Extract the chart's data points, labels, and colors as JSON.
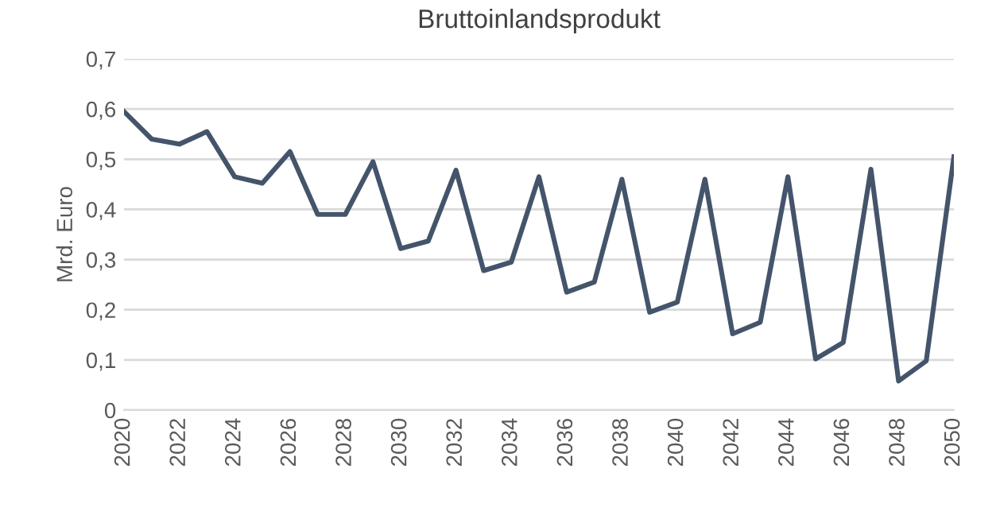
{
  "chart_data": {
    "type": "line",
    "title": "Bruttoinlandsprodukt",
    "ylabel": "Mrd. Euro",
    "x": [
      2020,
      2021,
      2022,
      2023,
      2024,
      2025,
      2026,
      2027,
      2028,
      2029,
      2030,
      2031,
      2032,
      2033,
      2034,
      2035,
      2036,
      2037,
      2038,
      2039,
      2040,
      2041,
      2042,
      2043,
      2044,
      2045,
      2046,
      2047,
      2048,
      2049,
      2050
    ],
    "series": [
      {
        "color": "#44546a",
        "values": [
          0.595,
          0.54,
          0.53,
          0.555,
          0.465,
          0.452,
          0.515,
          0.39,
          0.39,
          0.495,
          0.322,
          0.337,
          0.478,
          0.278,
          0.295,
          0.465,
          0.235,
          0.255,
          0.46,
          0.195,
          0.215,
          0.46,
          0.152,
          0.175,
          0.465,
          0.102,
          0.135,
          0.48,
          0.058,
          0.098,
          0.505
        ]
      }
    ],
    "xlim": [
      2020,
      2050
    ],
    "xticks": [
      2020,
      2022,
      2024,
      2026,
      2028,
      2030,
      2032,
      2034,
      2036,
      2038,
      2040,
      2042,
      2044,
      2046,
      2048,
      2050
    ],
    "ylim": [
      0,
      0.7
    ],
    "yticks": [
      0,
      {
        "value": 0.1,
        "label": "0,1"
      },
      {
        "value": 0.2,
        "label": "0,2"
      },
      {
        "value": 0.3,
        "label": "0,3"
      },
      {
        "value": 0.4,
        "label": "0,4"
      },
      {
        "value": 0.5,
        "label": "0,5"
      },
      {
        "value": 0.6,
        "label": "0,6"
      },
      {
        "value": 0.7,
        "label": "0,7"
      }
    ],
    "grid": "y",
    "legend": false,
    "marker": "none",
    "line_style": "solid"
  }
}
